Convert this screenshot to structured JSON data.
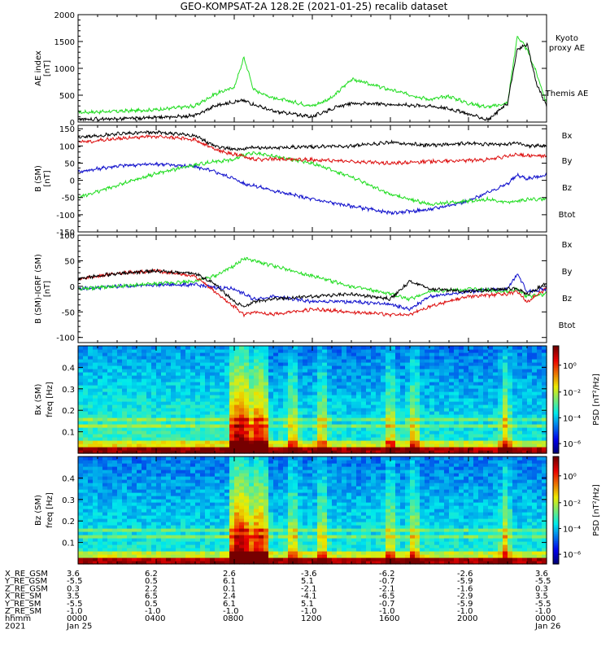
{
  "title": "GEO-KOMPSAT-2A 128.2E (2021-01-25) recalib dataset",
  "colors": {
    "black": "#000000",
    "green": "#22dd22",
    "red": "#dd1111",
    "blue": "#1010cc"
  },
  "panels": [
    {
      "id": "ae",
      "ylabel": [
        "AE index",
        "[nT]"
      ],
      "yticks": [
        "0",
        "500",
        "1000",
        "1500",
        "2000"
      ],
      "ylim": [
        0,
        2000
      ],
      "legend": [
        {
          "text": "Kyoto",
          "color": "green"
        },
        {
          "text": "proxy AE",
          "color": "green"
        },
        {
          "text": "Themis AE",
          "color": "black"
        }
      ]
    },
    {
      "id": "bsm",
      "ylabel": [
        "B (SM)",
        "[nT]"
      ],
      "yticks": [
        "-150",
        "-100",
        "-50",
        "0",
        "50",
        "100",
        "150"
      ],
      "ylim": [
        -150,
        160
      ],
      "legend": [
        {
          "text": "Bx",
          "color": "blue"
        },
        {
          "text": "By",
          "color": "green"
        },
        {
          "text": "Bz",
          "color": "red"
        },
        {
          "text": "Btot",
          "color": "black"
        }
      ]
    },
    {
      "id": "bdiff",
      "ylabel": [
        "B (SM)-IGRF (SM)",
        "[nT]"
      ],
      "yticks": [
        "-100",
        "-50",
        "0",
        "50",
        "100"
      ],
      "ylim": [
        -110,
        100
      ],
      "legend": [
        {
          "text": "Bx",
          "color": "blue"
        },
        {
          "text": "By",
          "color": "green"
        },
        {
          "text": "Bz",
          "color": "red"
        },
        {
          "text": "Btot",
          "color": "black"
        }
      ]
    },
    {
      "id": "specx",
      "ylabel": [
        "Bx (SM)",
        "freq [Hz]"
      ],
      "yticks": [
        "0.1",
        "0.2",
        "0.3",
        "0.4"
      ],
      "ylim": [
        0,
        0.5
      ],
      "cbar_label": "PSD [nT²/Hz]",
      "cbar_ticks": [
        "10⁰",
        "10⁻²",
        "10⁻⁴",
        "10⁻⁶"
      ]
    },
    {
      "id": "specz",
      "ylabel": [
        "Bz (SM)",
        "freq [Hz]"
      ],
      "yticks": [
        "0.1",
        "0.2",
        "0.3",
        "0.4"
      ],
      "ylim": [
        0,
        0.5
      ],
      "cbar_label": "PSD [nT²/Hz]",
      "cbar_ticks": [
        "10⁰",
        "10⁻²",
        "10⁻⁴",
        "10⁻⁶"
      ]
    }
  ],
  "ephemeris": {
    "rows": [
      {
        "label": "X_RE_GSM",
        "values": [
          "3.6",
          "6.2",
          "2.6",
          "-3.6",
          "-6.2",
          "-2.6",
          "3.6"
        ]
      },
      {
        "label": "Y_RE_GSM",
        "values": [
          "-5.5",
          "0.5",
          "6.1",
          "5.1",
          "-0.7",
          "-5.9",
          "-5.5"
        ]
      },
      {
        "label": "Z_RE_GSM",
        "values": [
          "0.3",
          "2.2",
          "0.1",
          "-2.1",
          "-2.1",
          "-1.6",
          "0.3"
        ]
      },
      {
        "label": "X_RE_SM",
        "values": [
          "3.5",
          "6.5",
          "2.4",
          "-4.1",
          "-6.5",
          "-2.9",
          "3.5"
        ]
      },
      {
        "label": "Y_RE_SM",
        "values": [
          "-5.5",
          "0.5",
          "6.1",
          "5.1",
          "-0.7",
          "-5.9",
          "-5.5"
        ]
      },
      {
        "label": "Z_RE_SM",
        "values": [
          "-1.0",
          "-1.0",
          "-1.0",
          "-1.0",
          "-1.0",
          "-1.0",
          "-1.0"
        ]
      },
      {
        "label": "hhmm",
        "values": [
          "0000",
          "0400",
          "0800",
          "1200",
          "1600",
          "2000",
          "0000"
        ]
      },
      {
        "label": "2021",
        "values": [
          "Jan 25",
          "",
          "",
          "",
          "",
          "",
          "Jan 26"
        ]
      }
    ]
  },
  "chart_data": [
    {
      "type": "line",
      "title": "GEO-KOMPSAT-2A 128.2E (2021-01-25) recalib dataset",
      "ylabel": "AE index [nT]",
      "ylim": [
        0,
        2000
      ],
      "x": [
        0,
        2,
        4,
        6,
        7,
        8,
        8.5,
        9,
        10,
        12,
        13,
        14,
        16,
        18,
        19,
        20,
        21,
        22,
        22.5,
        23,
        23.5,
        24
      ],
      "series": [
        {
          "name": "Kyoto proxy AE",
          "color": "green",
          "values": [
            180,
            200,
            230,
            300,
            520,
            650,
            1200,
            600,
            450,
            300,
            450,
            800,
            600,
            420,
            480,
            350,
            280,
            350,
            1600,
            1350,
            900,
            350
          ]
        },
        {
          "name": "Themis AE",
          "color": "black",
          "values": [
            50,
            60,
            80,
            120,
            300,
            380,
            400,
            330,
            200,
            100,
            250,
            350,
            330,
            300,
            250,
            150,
            40,
            350,
            1350,
            1450,
            700,
            300
          ]
        }
      ]
    },
    {
      "type": "line",
      "ylabel": "B (SM) [nT]",
      "ylim": [
        -150,
        160
      ],
      "x": [
        0,
        2,
        4,
        6,
        7,
        8,
        8.5,
        9,
        10,
        12,
        14,
        16,
        18,
        20,
        21,
        22,
        22.5,
        23,
        24
      ],
      "series": [
        {
          "name": "Bx",
          "color": "blue",
          "values": [
            25,
            42,
            48,
            40,
            25,
            5,
            -10,
            -15,
            -30,
            -55,
            -75,
            -95,
            -85,
            -60,
            -35,
            -10,
            15,
            5,
            15
          ]
        },
        {
          "name": "By",
          "color": "green",
          "values": [
            -50,
            -15,
            20,
            45,
            55,
            60,
            75,
            78,
            70,
            50,
            10,
            -40,
            -70,
            -60,
            -55,
            -65,
            -60,
            -55,
            -55
          ]
        },
        {
          "name": "Bz",
          "color": "red",
          "values": [
            110,
            122,
            128,
            118,
            90,
            75,
            70,
            60,
            62,
            60,
            55,
            50,
            55,
            58,
            60,
            70,
            75,
            72,
            70
          ]
        },
        {
          "name": "Btot",
          "color": "black",
          "values": [
            125,
            135,
            140,
            130,
            100,
            90,
            92,
            95,
            95,
            98,
            100,
            110,
            102,
            108,
            105,
            105,
            110,
            100,
            100
          ]
        }
      ]
    },
    {
      "type": "line",
      "ylabel": "B (SM)-IGRF (SM) [nT]",
      "ylim": [
        -110,
        100
      ],
      "x": [
        0,
        2,
        4,
        6,
        7,
        8,
        8.5,
        9,
        10,
        12,
        14,
        16,
        17,
        18,
        20,
        22,
        22.5,
        23,
        24
      ],
      "series": [
        {
          "name": "Bx",
          "color": "blue",
          "values": [
            -5,
            0,
            3,
            3,
            -2,
            -5,
            -15,
            -25,
            -20,
            -30,
            -30,
            -35,
            -45,
            -20,
            -10,
            -5,
            25,
            -10,
            -5
          ]
        },
        {
          "name": "By",
          "color": "green",
          "values": [
            -5,
            0,
            5,
            10,
            20,
            40,
            55,
            50,
            40,
            20,
            0,
            -15,
            -25,
            -10,
            -5,
            -10,
            -5,
            -20,
            -15
          ]
        },
        {
          "name": "Bz",
          "color": "red",
          "values": [
            15,
            25,
            30,
            20,
            -10,
            -40,
            -55,
            -50,
            -55,
            -45,
            -50,
            -55,
            -55,
            -40,
            -20,
            -15,
            -10,
            -30,
            -5
          ]
        },
        {
          "name": "Btot",
          "color": "black",
          "values": [
            15,
            25,
            30,
            25,
            5,
            -30,
            -40,
            -30,
            -25,
            -20,
            -15,
            -25,
            10,
            -5,
            -10,
            -5,
            -5,
            -15,
            5
          ]
        }
      ]
    },
    {
      "type": "heatmap",
      "ylabel": "Bx (SM) freq [Hz]",
      "ylim": [
        0,
        0.5
      ],
      "zlabel": "PSD [nT²/Hz]",
      "zlim_log10": [
        -7,
        1
      ]
    },
    {
      "type": "heatmap",
      "ylabel": "Bz (SM) freq [Hz]",
      "ylim": [
        0,
        0.5
      ],
      "zlabel": "PSD [nT²/Hz]",
      "zlim_log10": [
        -7,
        1
      ]
    }
  ]
}
